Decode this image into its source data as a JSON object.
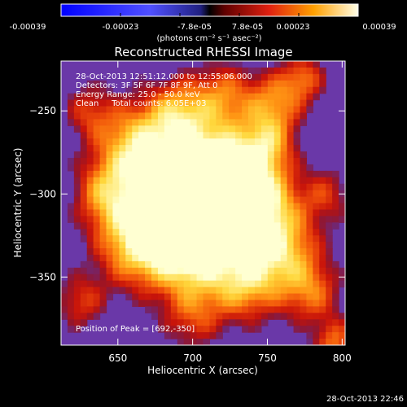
{
  "chart_data": {
    "type": "heatmap",
    "title": "Reconstructed RHESSI Image",
    "xlabel": "Heliocentric X (arcsec)",
    "ylabel": "Heliocentric Y (arcsec)",
    "xlim": [
      612,
      802
    ],
    "ylim": [
      -391,
      -220
    ],
    "x_ticks": [
      650,
      700,
      750,
      800
    ],
    "y_ticks": [
      -250,
      -300,
      -350
    ],
    "colorbar": {
      "units": "(photons cm⁻² s⁻¹ asec⁻²)",
      "tick_labels": [
        "-0.00039",
        "-0.00023",
        "-7.8e-05",
        "7.8e-05",
        "0.00023",
        "0.00039"
      ],
      "range": [
        -0.00039,
        0.00039
      ]
    },
    "annotations": [
      "28-Oct-2013 12:51:12.000 to 12:55:06.000",
      "Detectors: 3F 5F 6F 7F 8F 9F, Att 0",
      "Energy Range: 25.0 - 50.0 keV",
      "Clean     Total counts: 6.05E+03",
      "Position of Peak = [692,-350]"
    ],
    "peak": [
      692,
      -350
    ],
    "footer_timestamp": "28-Oct-2013 22:46",
    "colors": {
      "negative": "#1010ff",
      "zero": "#000000",
      "positive_low": "#c01010",
      "positive_high": "#ffffe0",
      "background_field": "#6a38a8"
    }
  }
}
